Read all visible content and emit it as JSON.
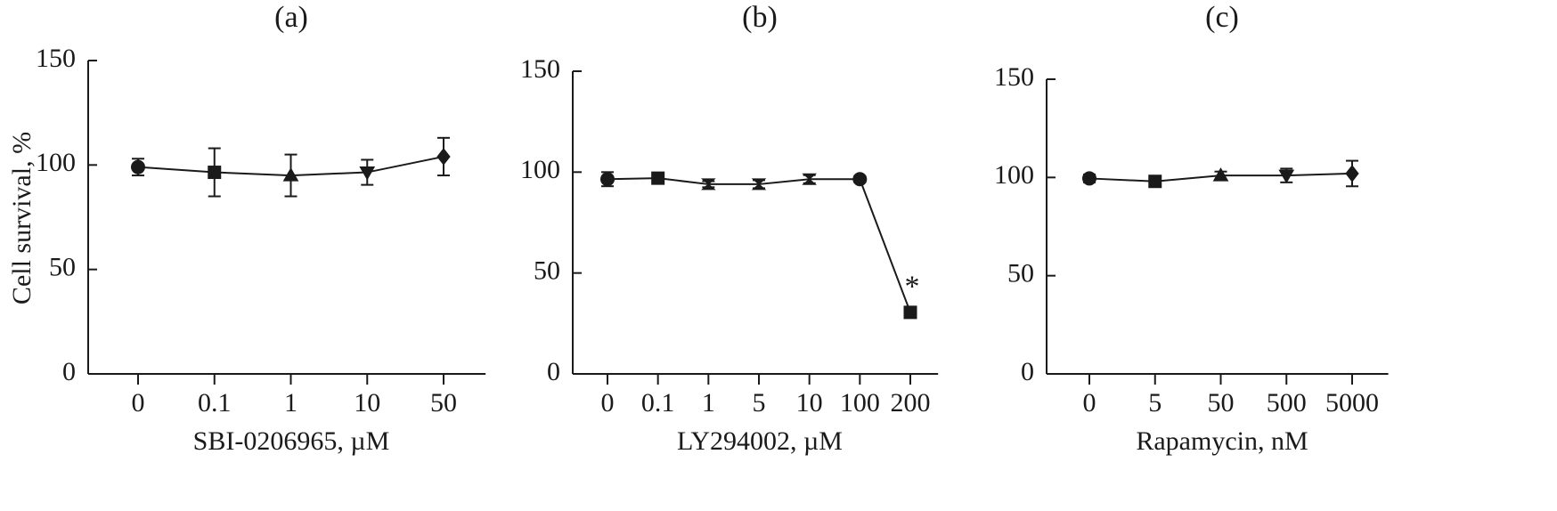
{
  "y_axis_label": "Cell survival, %",
  "chart_data": [
    {
      "type": "line",
      "title": "(a)",
      "xlabel": "SBI-0206965, µM",
      "ylabel": "Cell survival, %",
      "ylim": [
        0,
        150
      ],
      "yticks": [
        "0",
        "50",
        "100",
        "150"
      ],
      "categories": [
        "0",
        "0.1",
        "1",
        "10",
        "50"
      ],
      "markers": [
        "circle",
        "square",
        "triangle-up",
        "triangle-down",
        "diamond"
      ],
      "values": [
        99,
        96.5,
        95,
        96.5,
        104
      ],
      "errors": [
        4,
        11.5,
        10,
        6,
        9
      ],
      "annotations": []
    },
    {
      "type": "line",
      "title": "(b)",
      "xlabel": "LY294002, µM",
      "ylabel": "",
      "ylim": [
        0,
        150
      ],
      "yticks": [
        "0",
        "50",
        "100",
        "150"
      ],
      "categories": [
        "0",
        "0.1",
        "1",
        "5",
        "10",
        "100",
        "200"
      ],
      "markers": [
        "circle",
        "square",
        "hourglass",
        "hourglass",
        "hourglass",
        "circle",
        "square"
      ],
      "values": [
        96.5,
        97,
        94,
        94,
        96.5,
        96.5,
        30.5
      ],
      "errors": [
        3.5,
        1,
        1.5,
        2,
        2,
        1.5,
        0
      ],
      "annotations": [
        {
          "category": "200",
          "text": "*"
        }
      ]
    },
    {
      "type": "line",
      "title": "(c)",
      "xlabel": "Rapamycin, nM",
      "ylabel": "",
      "ylim": [
        0,
        150
      ],
      "yticks": [
        "0",
        "50",
        "100",
        "150"
      ],
      "categories": [
        "0",
        "5",
        "50",
        "500",
        "5000"
      ],
      "markers": [
        "circle",
        "square",
        "triangle-up",
        "triangle-down",
        "diamond"
      ],
      "values": [
        99.5,
        98,
        101,
        101,
        102
      ],
      "errors": [
        2,
        2.5,
        2,
        3.5,
        6.5
      ],
      "annotations": []
    }
  ]
}
